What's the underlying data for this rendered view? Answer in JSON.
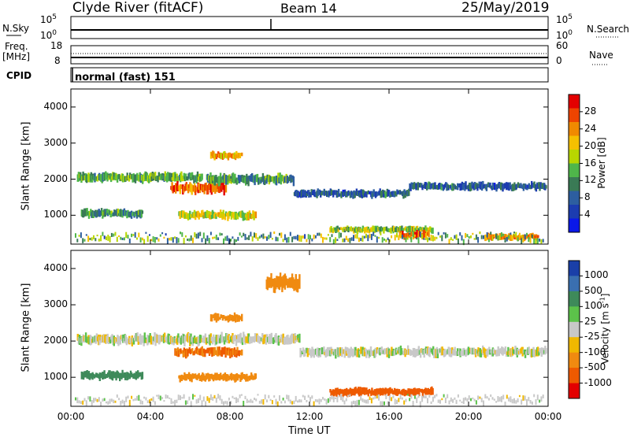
{
  "header": {
    "station": "Clyde River (fitACF)",
    "beam": "Beam 14",
    "date": "25/May/2019"
  },
  "top_panels": {
    "nsky_label": "N.Sky",
    "nsky_tick_top": "10^5",
    "nsky_tick_bottom": "10^0",
    "nsearch_label": "N.Search",
    "freq_label_line1": "Freq.",
    "freq_label_line2": "[MHz]",
    "freq_tick_top": "18",
    "freq_tick_bottom": "8",
    "nave_label": "Nave",
    "nave_tick_top": "60",
    "nave_tick_bottom": "0",
    "cpid_label": "CPID",
    "cpid_text": "normal (fast) 151"
  },
  "power_colorbar": {
    "title": "Power [dB]",
    "ticks": [
      "28",
      "24",
      "20",
      "16",
      "12",
      "8",
      "4"
    ],
    "colors": [
      "#e30000",
      "#ee4400",
      "#f08a00",
      "#f5c000",
      "#b8d600",
      "#4fb64a",
      "#3a7a55",
      "#2d5ea0",
      "#1c3cb0",
      "#0a18e8"
    ]
  },
  "velocity_colorbar": {
    "title": "Velocity [m s^-1]",
    "ticks": [
      "1000",
      "500",
      "100",
      "25",
      "-25",
      "-100",
      "-500",
      "-1000"
    ],
    "colors": [
      "#1a3fa8",
      "#3a6fb0",
      "#3e8a5a",
      "#5cc24a",
      "#c8c8c8",
      "#f0b800",
      "#f08a10",
      "#ee5a00",
      "#e30000"
    ]
  },
  "chart_data": [
    {
      "type": "heatmap",
      "title": "Power [dB]",
      "xlabel": "",
      "ylabel": "Slant Range [km]",
      "x_ticks": [
        "00:00",
        "04:00",
        "08:00",
        "12:00",
        "16:00",
        "20:00",
        "00:00"
      ],
      "y_ticks": [
        "1000",
        "2000",
        "3000",
        "4000"
      ],
      "ylim": [
        200,
        4500
      ],
      "xlim_hours": [
        0,
        24
      ],
      "scatter_bands": [
        {
          "name": "",
          "t_start": 0.3,
          "t_end": 6.6,
          "range_km": 2050,
          "width_km": 180,
          "power_db": 14
        },
        {
          "name": "",
          "t_start": 5.0,
          "t_end": 7.8,
          "range_km": 1750,
          "width_km": 200,
          "power_db": 26
        },
        {
          "name": "",
          "t_start": 6.8,
          "t_end": 11.2,
          "range_km": 2000,
          "width_km": 200,
          "power_db": 12
        },
        {
          "name": "",
          "t_start": 7.0,
          "t_end": 8.6,
          "range_km": 2650,
          "width_km": 140,
          "power_db": 22
        },
        {
          "name": "",
          "t_start": 11.2,
          "t_end": 17.0,
          "range_km": 1600,
          "width_km": 150,
          "power_db": 8
        },
        {
          "name": "",
          "t_start": 17.0,
          "t_end": 23.9,
          "range_km": 1800,
          "width_km": 150,
          "power_db": 8
        },
        {
          "name": "",
          "t_start": 0.5,
          "t_end": 3.6,
          "range_km": 1050,
          "width_km": 160,
          "power_db": 12
        },
        {
          "name": "",
          "t_start": 5.4,
          "t_end": 9.3,
          "range_km": 1000,
          "width_km": 160,
          "power_db": 18
        },
        {
          "name": "",
          "t_start": 13.0,
          "t_end": 18.2,
          "range_km": 600,
          "width_km": 120,
          "power_db": 16
        },
        {
          "name": "",
          "t_start": 16.5,
          "t_end": 18.0,
          "range_km": 450,
          "width_km": 150,
          "power_db": 26
        },
        {
          "name": "",
          "t_start": 20.8,
          "t_end": 23.5,
          "range_km": 400,
          "width_km": 120,
          "power_db": 24
        }
      ]
    },
    {
      "type": "heatmap",
      "title": "Velocity [m s^-1]",
      "xlabel": "Time UT",
      "ylabel": "Slant Range [km]",
      "x_ticks": [
        "00:00",
        "04:00",
        "08:00",
        "12:00",
        "16:00",
        "20:00",
        "00:00"
      ],
      "y_ticks": [
        "1000",
        "2000",
        "3000",
        "4000"
      ],
      "ylim": [
        200,
        4500
      ],
      "xlim_hours": [
        0,
        24
      ],
      "scatter_bands": [
        {
          "name": "",
          "t_start": 0.3,
          "t_end": 11.5,
          "range_km": 2050,
          "width_km": 200,
          "velocity": 0
        },
        {
          "name": "",
          "t_start": 11.5,
          "t_end": 23.9,
          "range_km": 1700,
          "width_km": 180,
          "velocity": 0
        },
        {
          "name": "",
          "t_start": 0.5,
          "t_end": 3.6,
          "range_km": 1050,
          "width_km": 160,
          "velocity": 150
        },
        {
          "name": "",
          "t_start": 5.2,
          "t_end": 8.6,
          "range_km": 1700,
          "width_km": 180,
          "velocity": -300
        },
        {
          "name": "",
          "t_start": 5.4,
          "t_end": 9.3,
          "range_km": 1000,
          "width_km": 150,
          "velocity": -200
        },
        {
          "name": "",
          "t_start": 7.0,
          "t_end": 8.6,
          "range_km": 2650,
          "width_km": 140,
          "velocity": -150
        },
        {
          "name": "",
          "t_start": 13.0,
          "t_end": 18.2,
          "range_km": 600,
          "width_km": 150,
          "velocity": -400
        },
        {
          "name": "",
          "t_start": 9.8,
          "t_end": 11.5,
          "range_km": 3600,
          "width_km": 300,
          "velocity": -200
        }
      ]
    }
  ]
}
